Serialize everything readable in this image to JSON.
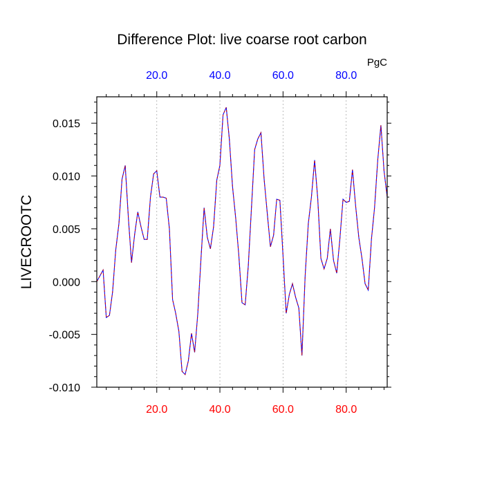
{
  "chart_data": {
    "type": "line",
    "title": "Difference Plot: live coarse root carbon",
    "units": "PgC",
    "ylabel": "LIVECROOTC",
    "xlabel": "",
    "xlim": [
      1,
      93
    ],
    "ylim": [
      -0.01,
      0.0175
    ],
    "bottom_ticks": [
      {
        "value": 20,
        "label": "20.0"
      },
      {
        "value": 40,
        "label": "40.0"
      },
      {
        "value": 60,
        "label": "60.0"
      },
      {
        "value": 80,
        "label": "80.0"
      }
    ],
    "top_ticks": [
      {
        "value": 20,
        "label": "20.0"
      },
      {
        "value": 40,
        "label": "40.0"
      },
      {
        "value": 60,
        "label": "60.0"
      },
      {
        "value": 80,
        "label": "80.0"
      }
    ],
    "y_ticks": [
      {
        "value": -0.01,
        "label": "-0.010"
      },
      {
        "value": -0.005,
        "label": "-0.005"
      },
      {
        "value": 0.0,
        "label": "0.000"
      },
      {
        "value": 0.005,
        "label": "0.005"
      },
      {
        "value": 0.01,
        "label": "0.010"
      },
      {
        "value": 0.015,
        "label": "0.015"
      }
    ],
    "x_minor_step": 4,
    "y_minor_step": 0.001,
    "grid": "vertical-dashed",
    "series": [
      {
        "color": "#0000ff",
        "overlay_color": "#cc0000",
        "x": [
          1,
          3,
          4,
          5,
          6,
          7,
          8,
          9,
          10,
          11,
          12,
          13,
          14,
          15,
          16,
          17,
          18,
          19,
          20,
          21,
          22,
          23,
          24,
          25,
          26,
          27,
          28,
          29,
          30,
          31,
          32,
          33,
          34,
          35,
          36,
          37,
          38,
          39,
          40,
          41,
          42,
          43,
          44,
          45,
          46,
          47,
          48,
          49,
          50,
          51,
          52,
          53,
          54,
          55,
          56,
          57,
          58,
          59,
          60,
          61,
          62,
          63,
          64,
          65,
          66,
          67,
          68,
          69,
          70,
          71,
          72,
          73,
          74,
          75,
          76,
          77,
          78,
          79,
          80,
          81,
          82,
          83,
          84,
          85,
          86,
          87,
          88,
          89,
          90,
          91,
          92,
          93
        ],
        "y": [
          0.0,
          0.0011,
          -0.0034,
          -0.0032,
          -0.001,
          0.003,
          0.0055,
          0.0097,
          0.011,
          0.006,
          0.0018,
          0.0045,
          0.0066,
          0.0052,
          0.004,
          0.004,
          0.008,
          0.0102,
          0.0105,
          0.008,
          0.008,
          0.0079,
          0.005,
          -0.0017,
          -0.003,
          -0.0047,
          -0.0085,
          -0.0088,
          -0.0075,
          -0.0049,
          -0.0067,
          -0.003,
          0.0022,
          0.007,
          0.0042,
          0.0031,
          0.0052,
          0.0096,
          0.011,
          0.0158,
          0.0165,
          0.0135,
          0.009,
          0.006,
          0.0025,
          -0.002,
          -0.0022,
          0.0015,
          0.007,
          0.0125,
          0.0135,
          0.0141,
          0.0097,
          0.0065,
          0.0033,
          0.0044,
          0.0078,
          0.0077,
          0.0025,
          -0.003,
          -0.0012,
          -0.0002,
          -0.0015,
          -0.0025,
          -0.007,
          0.0005,
          0.0055,
          0.008,
          0.0115,
          0.0078,
          0.0022,
          0.0012,
          0.0022,
          0.005,
          0.002,
          0.0008,
          0.004,
          0.0078,
          0.0075,
          0.0076,
          0.0106,
          0.0072,
          0.0042,
          0.0022,
          -0.0002,
          -0.0008,
          0.004,
          0.007,
          0.0115,
          0.0148,
          0.0105,
          0.008
        ]
      }
    ]
  }
}
